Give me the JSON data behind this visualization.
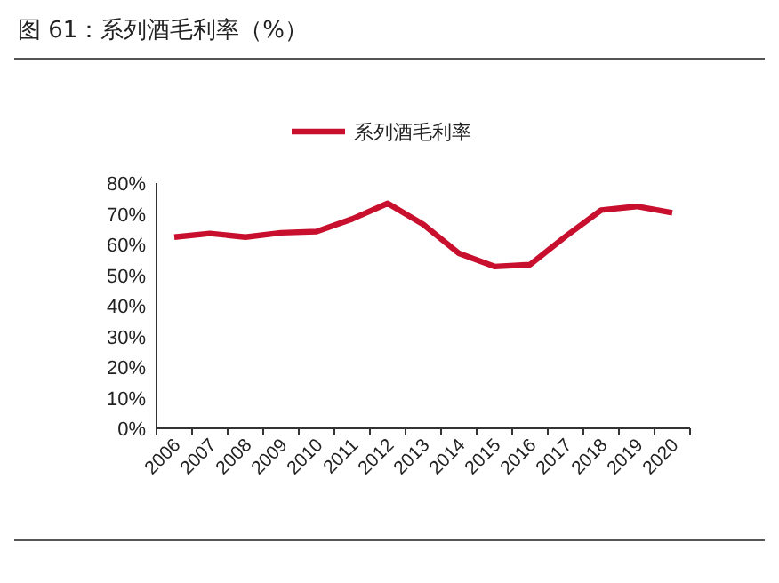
{
  "chart_data": {
    "type": "line",
    "title": "图 61：系列酒毛利率（%）",
    "categories": [
      "2006",
      "2007",
      "2008",
      "2009",
      "2010",
      "2011",
      "2012",
      "2013",
      "2014",
      "2015",
      "2016",
      "2017",
      "2018",
      "2019",
      "2020"
    ],
    "series": [
      {
        "name": "系列酒毛利率",
        "color": "#c8102e",
        "values": [
          62.4,
          63.6,
          62.4,
          63.8,
          64.2,
          68.3,
          73.4,
          66.5,
          57.1,
          52.8,
          53.4,
          62.6,
          71.2,
          72.4,
          70.3
        ]
      }
    ],
    "ylim": [
      0,
      80
    ],
    "yticks": [
      {
        "value": 0,
        "label": "0%"
      },
      {
        "value": 10,
        "label": "10%"
      },
      {
        "value": 20,
        "label": "20%"
      },
      {
        "value": 30,
        "label": "30%"
      },
      {
        "value": 40,
        "label": "40%"
      },
      {
        "value": 50,
        "label": "50%"
      },
      {
        "value": 60,
        "label": "60%"
      },
      {
        "value": 70,
        "label": "70%"
      },
      {
        "value": 80,
        "label": "80%"
      }
    ],
    "legend": "top",
    "grid": false,
    "marker": "none",
    "line_style": "solid"
  }
}
